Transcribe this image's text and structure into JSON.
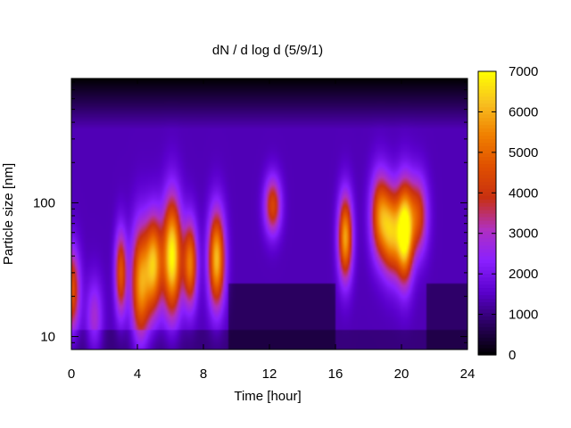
{
  "chart_data": {
    "type": "heatmap",
    "title": "dN / d log d (5/9/1)",
    "xlabel": "Time [hour]",
    "ylabel": "Particle size [nm]",
    "x_ticks": [
      0,
      4,
      8,
      12,
      16,
      20,
      24
    ],
    "x_tick_labels": [
      "0",
      "4",
      "8",
      "12",
      "16",
      "20",
      "24"
    ],
    "xlim": [
      0,
      24
    ],
    "y_scale": "log",
    "ylim": [
      8,
      850
    ],
    "y_ticks": [
      10,
      100
    ],
    "y_tick_labels": [
      "10",
      "100"
    ],
    "colorbar": {
      "range": [
        0,
        7000
      ],
      "ticks": [
        0,
        1000,
        2000,
        3000,
        4000,
        5000,
        6000,
        7000
      ],
      "tick_labels": [
        "0",
        "1000",
        "2000",
        "3000",
        "4000",
        "5000",
        "6000",
        "7000"
      ],
      "palette": [
        "#000000",
        "#2a0060",
        "#5a00cc",
        "#8a20ff",
        "#b030c0",
        "#c83010",
        "#e05000",
        "#f08000",
        "#f8c020",
        "#ffff00"
      ]
    },
    "grid": false,
    "background_level": 1400,
    "peaks": [
      {
        "t": 0.0,
        "d": 22,
        "value": 3400,
        "width_h": 0.35,
        "log_width": 0.22
      },
      {
        "t": 1.4,
        "d": 14,
        "value": 1500,
        "width_h": 0.35,
        "log_width": 0.2
      },
      {
        "t": 3.0,
        "d": 30,
        "value": 3300,
        "width_h": 0.25,
        "log_width": 0.22
      },
      {
        "t": 4.2,
        "d": 25,
        "value": 4300,
        "width_h": 0.4,
        "log_width": 0.3
      },
      {
        "t": 5.0,
        "d": 35,
        "value": 4400,
        "width_h": 0.35,
        "log_width": 0.25
      },
      {
        "t": 6.1,
        "d": 40,
        "value": 5600,
        "width_h": 0.4,
        "log_width": 0.3
      },
      {
        "t": 7.2,
        "d": 35,
        "value": 3900,
        "width_h": 0.3,
        "log_width": 0.22
      },
      {
        "t": 8.8,
        "d": 38,
        "value": 4800,
        "width_h": 0.35,
        "log_width": 0.25
      },
      {
        "t": 12.2,
        "d": 95,
        "value": 3000,
        "width_h": 0.35,
        "log_width": 0.15
      },
      {
        "t": 16.6,
        "d": 55,
        "value": 4500,
        "width_h": 0.3,
        "log_width": 0.22
      },
      {
        "t": 18.7,
        "d": 80,
        "value": 3700,
        "width_h": 0.4,
        "log_width": 0.22
      },
      {
        "t": 19.4,
        "d": 60,
        "value": 4000,
        "width_h": 0.4,
        "log_width": 0.22
      },
      {
        "t": 20.2,
        "d": 60,
        "value": 5800,
        "width_h": 0.35,
        "log_width": 0.25
      },
      {
        "t": 21.0,
        "d": 80,
        "value": 3000,
        "width_h": 0.4,
        "log_width": 0.2
      }
    ]
  }
}
